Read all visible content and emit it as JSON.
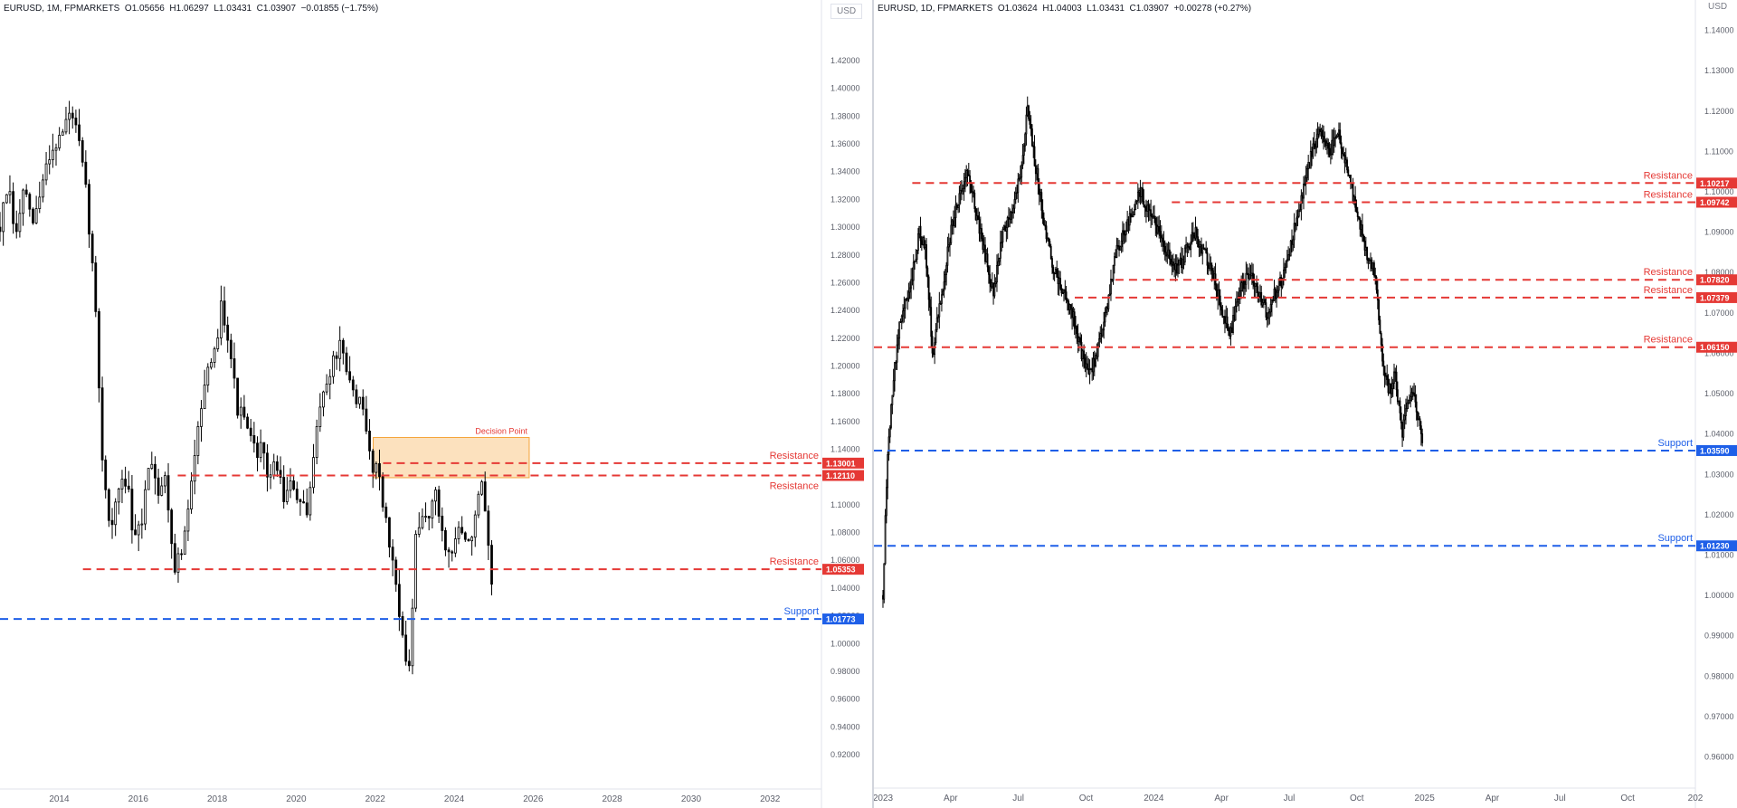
{
  "colors": {
    "resistance": "#e53935",
    "support": "#1e5fe8",
    "candle": "#000000",
    "zone_fill": "#fbd7a8",
    "zone_edge": "#f5a43a",
    "axis_text": "#5d606b"
  },
  "chart_data": [
    {
      "type": "candlestick",
      "id": "left",
      "header": {
        "symbol": "EURUSD, 1M, FPMARKETS",
        "open": "O1.05656",
        "high": "H1.06297",
        "low": "L1.03431",
        "close": "C1.03907",
        "change": "−0.01855 (−1.75%)"
      },
      "currency_label": "USD",
      "x_tick_labels": [
        "2014",
        "2016",
        "2018",
        "2020",
        "2022",
        "2024",
        "2026",
        "2028",
        "2030",
        "2032"
      ],
      "x_tick_values": [
        2014,
        2016,
        2018,
        2020,
        2022,
        2024,
        2026,
        2028,
        2030,
        2032
      ],
      "xlim": [
        2012.5,
        2033.3
      ],
      "y_tick_labels": [
        "1.42000",
        "1.40000",
        "1.38000",
        "1.36000",
        "1.34000",
        "1.32000",
        "1.30000",
        "1.28000",
        "1.26000",
        "1.24000",
        "1.22000",
        "1.20000",
        "1.18000",
        "1.16000",
        "1.14000",
        "1.12000",
        "1.10000",
        "1.08000",
        "1.06000",
        "1.04000",
        "1.02000",
        "1.00000",
        "0.98000",
        "0.96000",
        "0.94000",
        "0.92000"
      ],
      "ylim": [
        0.905,
        1.435
      ],
      "price_path": [
        [
          2012.5,
          1.3
        ],
        [
          2012.7,
          1.33
        ],
        [
          2012.9,
          1.29
        ],
        [
          2013.1,
          1.33
        ],
        [
          2013.3,
          1.3
        ],
        [
          2013.5,
          1.32
        ],
        [
          2013.7,
          1.35
        ],
        [
          2013.9,
          1.36
        ],
        [
          2014.1,
          1.37
        ],
        [
          2014.3,
          1.385
        ],
        [
          2014.5,
          1.36
        ],
        [
          2014.7,
          1.32
        ],
        [
          2014.9,
          1.25
        ],
        [
          2015.1,
          1.13
        ],
        [
          2015.3,
          1.08
        ],
        [
          2015.5,
          1.11
        ],
        [
          2015.7,
          1.12
        ],
        [
          2015.9,
          1.07
        ],
        [
          2016.1,
          1.09
        ],
        [
          2016.3,
          1.14
        ],
        [
          2016.5,
          1.11
        ],
        [
          2016.7,
          1.12
        ],
        [
          2016.9,
          1.055
        ],
        [
          2017.1,
          1.065
        ],
        [
          2017.3,
          1.1
        ],
        [
          2017.5,
          1.16
        ],
        [
          2017.7,
          1.19
        ],
        [
          2017.9,
          1.2
        ],
        [
          2018.1,
          1.245
        ],
        [
          2018.3,
          1.22
        ],
        [
          2018.5,
          1.17
        ],
        [
          2018.7,
          1.16
        ],
        [
          2018.9,
          1.14
        ],
        [
          2019.1,
          1.14
        ],
        [
          2019.3,
          1.12
        ],
        [
          2019.5,
          1.13
        ],
        [
          2019.7,
          1.105
        ],
        [
          2019.9,
          1.115
        ],
        [
          2020.1,
          1.1
        ],
        [
          2020.3,
          1.09
        ],
        [
          2020.5,
          1.16
        ],
        [
          2020.7,
          1.18
        ],
        [
          2020.9,
          1.2
        ],
        [
          2021.1,
          1.215
        ],
        [
          2021.3,
          1.19
        ],
        [
          2021.5,
          1.18
        ],
        [
          2021.7,
          1.165
        ],
        [
          2021.9,
          1.13
        ],
        [
          2022.1,
          1.125
        ],
        [
          2022.3,
          1.08
        ],
        [
          2022.5,
          1.05
        ],
        [
          2022.7,
          1.005
        ],
        [
          2022.8,
          0.975
        ],
        [
          2022.9,
          0.99
        ],
        [
          2023.0,
          1.07
        ],
        [
          2023.2,
          1.09
        ],
        [
          2023.4,
          1.095
        ],
        [
          2023.5,
          1.11
        ],
        [
          2023.7,
          1.08
        ],
        [
          2023.9,
          1.06
        ],
        [
          2024.1,
          1.085
        ],
        [
          2024.3,
          1.07
        ],
        [
          2024.5,
          1.085
        ],
        [
          2024.7,
          1.115
        ],
        [
          2024.85,
          1.07
        ],
        [
          2024.95,
          1.039
        ]
      ],
      "levels": [
        {
          "label": "Resistance",
          "value": 1.13001,
          "price_label": "1.13001",
          "kind": "resistance",
          "x_start": 2022.2,
          "label_side": "above"
        },
        {
          "label": "Resistance",
          "value": 1.1211,
          "price_label": "1.12110",
          "kind": "resistance",
          "x_start": 2017.0,
          "label_side": "below"
        },
        {
          "label": "Resistance",
          "value": 1.05353,
          "price_label": "1.05353",
          "kind": "resistance",
          "x_start": 2014.6,
          "label_side": "above"
        },
        {
          "label": "Support",
          "value": 1.01773,
          "price_label": "1.01773",
          "kind": "support",
          "x_start": 2012.5,
          "label_side": "above"
        }
      ],
      "zone": {
        "label": "Decision Point",
        "x_start": 2021.95,
        "x_end": 2025.9,
        "y_low": 1.1195,
        "y_high": 1.1485
      }
    },
    {
      "type": "candlestick",
      "id": "right",
      "header": {
        "symbol": "EURUSD, 1D, FPMARKETS",
        "open": "O1.03624",
        "high": "H1.04003",
        "low": "L1.03431",
        "close": "C1.03907",
        "change": "+0.00278 (+0.27%)"
      },
      "currency_label": "USD",
      "x_tick_labels": [
        "2023",
        "Apr",
        "Jul",
        "Oct",
        "2024",
        "Apr",
        "Jul",
        "Oct",
        "2025",
        "Apr",
        "Jul",
        "Oct",
        "202"
      ],
      "x_tick_values": [
        0,
        3,
        6,
        9,
        12,
        15,
        18,
        21,
        24,
        27,
        30,
        33,
        36
      ],
      "xlim": [
        -0.4,
        36.0
      ],
      "y_tick_labels": [
        "1.14000",
        "1.13000",
        "1.12000",
        "1.11000",
        "1.10000",
        "1.09000",
        "1.08000",
        "1.07000",
        "1.06000",
        "1.05000",
        "1.04000",
        "1.03000",
        "1.02000",
        "1.01000",
        "1.00000",
        "0.99000",
        "0.98000",
        "0.97000",
        "0.96000"
      ],
      "ylim": [
        0.9543,
        1.1455
      ],
      "price_path": [
        [
          0.0,
          1.0
        ],
        [
          0.2,
          1.035
        ],
        [
          0.5,
          1.055
        ],
        [
          0.8,
          1.07
        ],
        [
          1.2,
          1.075
        ],
        [
          1.6,
          1.09
        ],
        [
          1.9,
          1.085
        ],
        [
          2.2,
          1.06
        ],
        [
          2.6,
          1.075
        ],
        [
          3.0,
          1.09
        ],
        [
          3.4,
          1.1
        ],
        [
          3.8,
          1.105
        ],
        [
          4.1,
          1.095
        ],
        [
          4.5,
          1.085
        ],
        [
          4.9,
          1.075
        ],
        [
          5.3,
          1.09
        ],
        [
          5.7,
          1.095
        ],
        [
          6.1,
          1.105
        ],
        [
          6.4,
          1.12
        ],
        [
          6.8,
          1.105
        ],
        [
          7.2,
          1.09
        ],
        [
          7.6,
          1.08
        ],
        [
          8.0,
          1.075
        ],
        [
          8.4,
          1.07
        ],
        [
          8.8,
          1.06
        ],
        [
          9.1,
          1.055
        ],
        [
          9.5,
          1.06
        ],
        [
          9.9,
          1.07
        ],
        [
          10.3,
          1.085
        ],
        [
          10.7,
          1.09
        ],
        [
          11.1,
          1.095
        ],
        [
          11.4,
          1.1
        ],
        [
          11.8,
          1.095
        ],
        [
          12.2,
          1.09
        ],
        [
          12.6,
          1.085
        ],
        [
          13.0,
          1.08
        ],
        [
          13.4,
          1.085
        ],
        [
          13.8,
          1.09
        ],
        [
          14.2,
          1.085
        ],
        [
          14.6,
          1.08
        ],
        [
          15.0,
          1.07
        ],
        [
          15.4,
          1.065
        ],
        [
          15.8,
          1.075
        ],
        [
          16.2,
          1.08
        ],
        [
          16.6,
          1.075
        ],
        [
          17.0,
          1.07
        ],
        [
          17.4,
          1.075
        ],
        [
          17.8,
          1.08
        ],
        [
          18.2,
          1.09
        ],
        [
          18.6,
          1.1
        ],
        [
          19.0,
          1.11
        ],
        [
          19.4,
          1.115
        ],
        [
          19.8,
          1.11
        ],
        [
          20.2,
          1.115
        ],
        [
          20.6,
          1.105
        ],
        [
          21.0,
          1.095
        ],
        [
          21.4,
          1.085
        ],
        [
          21.8,
          1.08
        ],
        [
          22.1,
          1.06
        ],
        [
          22.4,
          1.05
        ],
        [
          22.7,
          1.055
        ],
        [
          23.0,
          1.04
        ],
        [
          23.3,
          1.05
        ],
        [
          23.6,
          1.048
        ],
        [
          23.9,
          1.039
        ]
      ],
      "levels": [
        {
          "label": "Resistance",
          "value": 1.10217,
          "price_label": "1.10217",
          "kind": "resistance",
          "x_start": 1.3,
          "label_side": "above"
        },
        {
          "label": "Resistance",
          "value": 1.09742,
          "price_label": "1.09742",
          "kind": "resistance",
          "x_start": 12.8,
          "label_side": "above"
        },
        {
          "label": "Resistance",
          "value": 1.0782,
          "price_label": "1.07820",
          "kind": "resistance",
          "x_start": 10.3,
          "label_side": "above"
        },
        {
          "label": "Resistance",
          "value": 1.07379,
          "price_label": "1.07379",
          "kind": "resistance",
          "x_start": 8.5,
          "label_side": "above"
        },
        {
          "label": "Resistance",
          "value": 1.0615,
          "price_label": "1.06150",
          "kind": "resistance",
          "x_start": -0.4,
          "label_side": "above"
        },
        {
          "label": "Support",
          "value": 1.0359,
          "price_label": "1.03590",
          "kind": "support",
          "x_start": -0.4,
          "label_side": "above"
        },
        {
          "label": "Support",
          "value": 1.0123,
          "price_label": "1.01230",
          "kind": "support",
          "x_start": -0.4,
          "label_side": "above"
        }
      ]
    }
  ]
}
